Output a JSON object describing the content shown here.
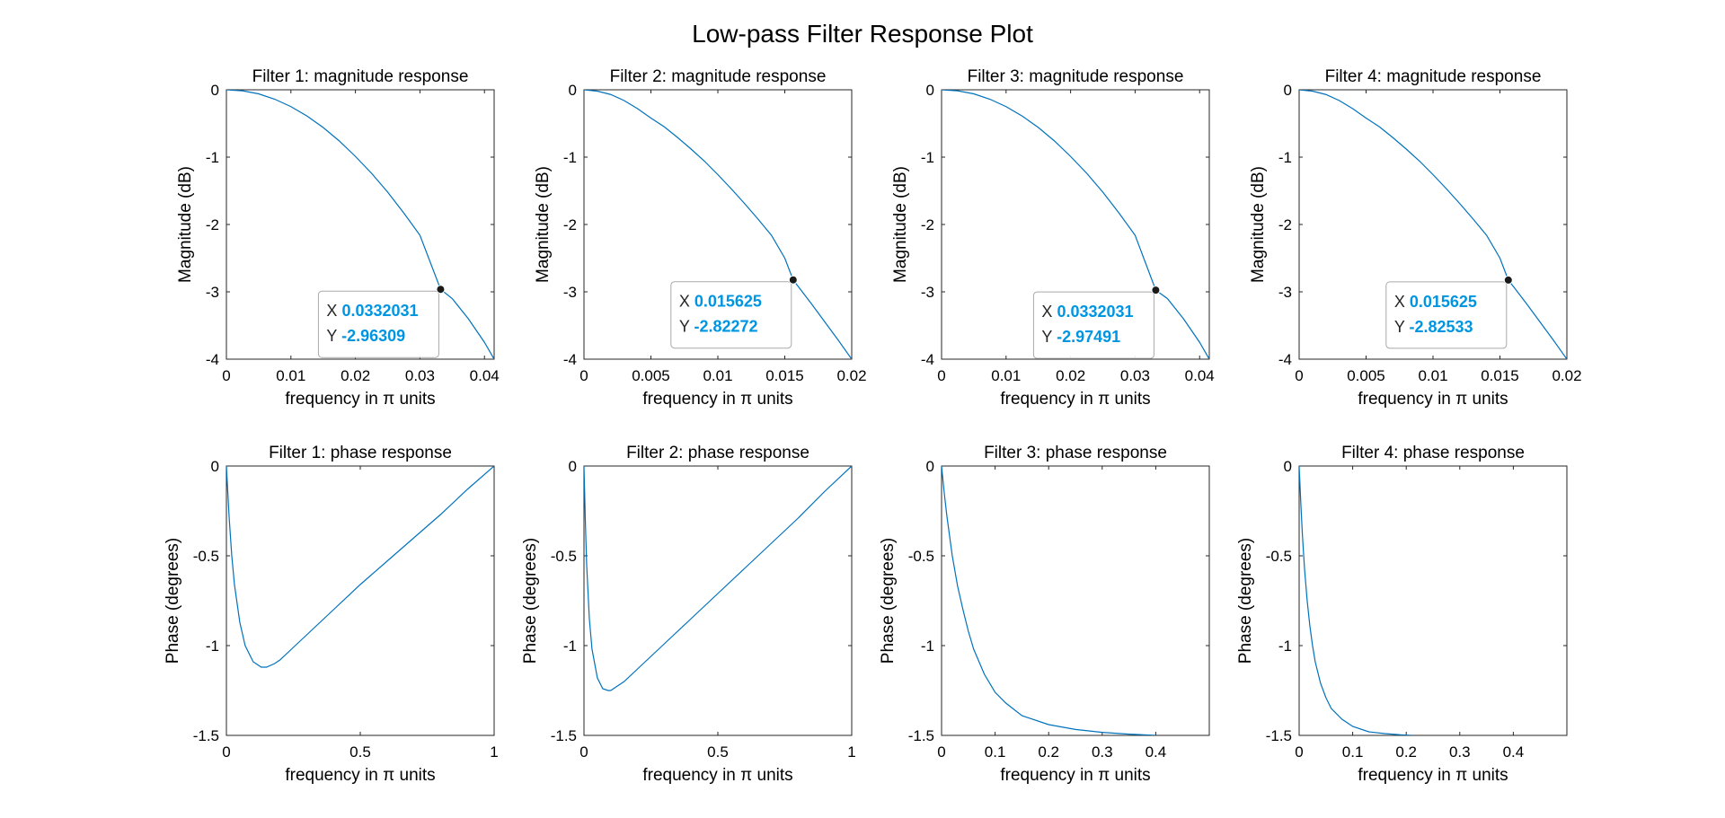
{
  "figure_title": "Low-pass Filter Response Plot",
  "colors": {
    "line": "#0072BD",
    "datatip_value": "#0095E0",
    "axis": "#262626"
  },
  "chart_data": [
    {
      "type": "line",
      "title": "Filter 1: magnitude response",
      "xlabel": "frequency in π units",
      "ylabel": "Magnitude (dB)",
      "xlim": [
        0,
        0.0415
      ],
      "ylim": [
        -4,
        0
      ],
      "xticks": [
        0,
        0.01,
        0.02,
        0.03,
        0.04
      ],
      "xticklabels": [
        "0",
        "0.01",
        "0.02",
        "0.03",
        "0.04"
      ],
      "yticks": [
        -4,
        -3,
        -2,
        -1,
        0
      ],
      "yticklabels": [
        "-4",
        "-3",
        "-2",
        "-1",
        "0"
      ],
      "series": [
        {
          "x": [
            0,
            0.0025,
            0.005,
            0.0075,
            0.01,
            0.0125,
            0.015,
            0.0175,
            0.02,
            0.0225,
            0.025,
            0.0275,
            0.03,
            0.0332031,
            0.035,
            0.0375,
            0.04,
            0.0415
          ],
          "y": [
            0,
            -0.015,
            -0.06,
            -0.14,
            -0.25,
            -0.39,
            -0.56,
            -0.76,
            -0.99,
            -1.24,
            -1.52,
            -1.83,
            -2.16,
            -2.96309,
            -3.1,
            -3.4,
            -3.75,
            -4.0
          ]
        }
      ],
      "datatip": {
        "x": 0.0332031,
        "y": -2.96309,
        "x_label": "X",
        "y_label": "Y",
        "x_text": "0.0332031",
        "y_text": "-2.96309"
      }
    },
    {
      "type": "line",
      "title": "Filter 2: magnitude response",
      "xlabel": "frequency in π units",
      "ylabel": "Magnitude (dB)",
      "xlim": [
        0,
        0.02
      ],
      "ylim": [
        -4,
        0
      ],
      "xticks": [
        0,
        0.005,
        0.01,
        0.015,
        0.02
      ],
      "xticklabels": [
        "0",
        "0.005",
        "0.01",
        "0.015",
        "0.02"
      ],
      "yticks": [
        -4,
        -3,
        -2,
        -1,
        0
      ],
      "yticklabels": [
        "-4",
        "-3",
        "-2",
        "-1",
        "0"
      ],
      "series": [
        {
          "x": [
            0,
            0.001,
            0.002,
            0.003,
            0.004,
            0.005,
            0.006,
            0.007,
            0.008,
            0.009,
            0.01,
            0.011,
            0.012,
            0.013,
            0.014,
            0.015,
            0.015625,
            0.016,
            0.017,
            0.018,
            0.019,
            0.02
          ],
          "y": [
            0,
            -0.02,
            -0.07,
            -0.16,
            -0.28,
            -0.42,
            -0.55,
            -0.71,
            -0.88,
            -1.06,
            -1.26,
            -1.47,
            -1.69,
            -1.92,
            -2.16,
            -2.5,
            -2.82272,
            -2.92,
            -3.18,
            -3.45,
            -3.72,
            -4.0
          ]
        }
      ],
      "datatip": {
        "x": 0.015625,
        "y": -2.82272,
        "x_label": "X",
        "y_label": "Y",
        "x_text": "0.015625",
        "y_text": "-2.82272"
      }
    },
    {
      "type": "line",
      "title": "Filter 3: magnitude response",
      "xlabel": "frequency in π units",
      "ylabel": "Magnitude (dB)",
      "xlim": [
        0,
        0.0415
      ],
      "ylim": [
        -4,
        0
      ],
      "xticks": [
        0,
        0.01,
        0.02,
        0.03,
        0.04
      ],
      "xticklabels": [
        "0",
        "0.01",
        "0.02",
        "0.03",
        "0.04"
      ],
      "yticks": [
        -4,
        -3,
        -2,
        -1,
        0
      ],
      "yticklabels": [
        "-4",
        "-3",
        "-2",
        "-1",
        "0"
      ],
      "series": [
        {
          "x": [
            0,
            0.0025,
            0.005,
            0.0075,
            0.01,
            0.0125,
            0.015,
            0.0175,
            0.02,
            0.0225,
            0.025,
            0.0275,
            0.03,
            0.0332031,
            0.035,
            0.0375,
            0.04,
            0.0415
          ],
          "y": [
            0,
            -0.015,
            -0.06,
            -0.14,
            -0.25,
            -0.39,
            -0.56,
            -0.76,
            -0.99,
            -1.24,
            -1.52,
            -1.83,
            -2.16,
            -2.97491,
            -3.1,
            -3.4,
            -3.75,
            -4.0
          ]
        }
      ],
      "datatip": {
        "x": 0.0332031,
        "y": -2.97491,
        "x_label": "X",
        "y_label": "Y",
        "x_text": "0.0332031",
        "y_text": "-2.97491"
      }
    },
    {
      "type": "line",
      "title": "Filter 4: magnitude response",
      "xlabel": "frequency in π units",
      "ylabel": "Magnitude (dB)",
      "xlim": [
        0,
        0.02
      ],
      "ylim": [
        -4,
        0
      ],
      "xticks": [
        0,
        0.005,
        0.01,
        0.015,
        0.02
      ],
      "xticklabels": [
        "0",
        "0.005",
        "0.01",
        "0.015",
        "0.02"
      ],
      "yticks": [
        -4,
        -3,
        -2,
        -1,
        0
      ],
      "yticklabels": [
        "-4",
        "-3",
        "-2",
        "-1",
        "0"
      ],
      "series": [
        {
          "x": [
            0,
            0.001,
            0.002,
            0.003,
            0.004,
            0.005,
            0.006,
            0.007,
            0.008,
            0.009,
            0.01,
            0.011,
            0.012,
            0.013,
            0.014,
            0.015,
            0.015625,
            0.016,
            0.017,
            0.018,
            0.019,
            0.02
          ],
          "y": [
            0,
            -0.02,
            -0.07,
            -0.16,
            -0.28,
            -0.42,
            -0.55,
            -0.71,
            -0.88,
            -1.06,
            -1.26,
            -1.47,
            -1.69,
            -1.92,
            -2.16,
            -2.5,
            -2.82533,
            -2.92,
            -3.18,
            -3.45,
            -3.72,
            -4.0
          ]
        }
      ],
      "datatip": {
        "x": 0.015625,
        "y": -2.82533,
        "x_label": "X",
        "y_label": "Y",
        "x_text": "0.015625",
        "y_text": "-2.82533"
      }
    },
    {
      "type": "line",
      "title": "Filter 1: phase response",
      "xlabel": "frequency in π units",
      "ylabel": "Phase (degrees)",
      "xlim": [
        0,
        1
      ],
      "ylim": [
        -1.5,
        0
      ],
      "xticks": [
        0,
        0.5,
        1
      ],
      "xticklabels": [
        "0",
        "0.5",
        "1"
      ],
      "yticks": [
        -1.5,
        -1,
        -0.5,
        0
      ],
      "yticklabels": [
        "-1.5",
        "-1",
        "-0.5",
        "0"
      ],
      "series": [
        {
          "x": [
            0,
            0.01,
            0.02,
            0.03,
            0.05,
            0.07,
            0.1,
            0.13,
            0.15,
            0.18,
            0.2,
            0.25,
            0.3,
            0.4,
            0.5,
            0.6,
            0.7,
            0.8,
            0.9,
            1.0
          ],
          "y": [
            0,
            -0.28,
            -0.5,
            -0.66,
            -0.87,
            -1.0,
            -1.09,
            -1.12,
            -1.12,
            -1.1,
            -1.08,
            -1.01,
            -0.94,
            -0.8,
            -0.66,
            -0.53,
            -0.4,
            -0.27,
            -0.13,
            0
          ]
        }
      ]
    },
    {
      "type": "line",
      "title": "Filter 2: phase response",
      "xlabel": "frequency in π units",
      "ylabel": "Phase (degrees)",
      "xlim": [
        0,
        1
      ],
      "ylim": [
        -1.5,
        0
      ],
      "xticks": [
        0,
        0.5,
        1
      ],
      "xticklabels": [
        "0",
        "0.5",
        "1"
      ],
      "yticks": [
        -1.5,
        -1,
        -0.5,
        0
      ],
      "yticklabels": [
        "-1.5",
        "-1",
        "-0.5",
        "0"
      ],
      "series": [
        {
          "x": [
            0,
            0.005,
            0.01,
            0.02,
            0.03,
            0.05,
            0.07,
            0.09,
            0.1,
            0.12,
            0.15,
            0.2,
            0.3,
            0.4,
            0.5,
            0.6,
            0.7,
            0.8,
            0.9,
            1.0
          ],
          "y": [
            0,
            -0.3,
            -0.55,
            -0.85,
            -1.02,
            -1.18,
            -1.24,
            -1.25,
            -1.25,
            -1.23,
            -1.2,
            -1.13,
            -0.99,
            -0.85,
            -0.71,
            -0.57,
            -0.43,
            -0.29,
            -0.14,
            0
          ]
        }
      ]
    },
    {
      "type": "line",
      "title": "Filter 3: phase response",
      "xlabel": "frequency in π units",
      "ylabel": "Phase (degrees)",
      "xlim": [
        0,
        0.5
      ],
      "ylim": [
        -1.5,
        0
      ],
      "xticks": [
        0,
        0.1,
        0.2,
        0.3,
        0.4
      ],
      "xticklabels": [
        "0",
        "0.1",
        "0.2",
        "0.3",
        "0.4"
      ],
      "yticks": [
        -1.5,
        -1,
        -0.5,
        0
      ],
      "yticklabels": [
        "-1.5",
        "-1",
        "-0.5",
        "0"
      ],
      "series": [
        {
          "x": [
            0,
            0.005,
            0.01,
            0.02,
            0.03,
            0.04,
            0.05,
            0.06,
            0.08,
            0.1,
            0.12,
            0.15,
            0.2,
            0.25,
            0.3,
            0.35,
            0.4
          ],
          "y": [
            0,
            -0.15,
            -0.28,
            -0.5,
            -0.67,
            -0.8,
            -0.92,
            -1.02,
            -1.16,
            -1.26,
            -1.32,
            -1.39,
            -1.44,
            -1.467,
            -1.483,
            -1.493,
            -1.5
          ]
        }
      ]
    },
    {
      "type": "line",
      "title": "Filter 4: phase response",
      "xlabel": "frequency in π units",
      "ylabel": "Phase (degrees)",
      "xlim": [
        0,
        0.5
      ],
      "ylim": [
        -1.5,
        0
      ],
      "xticks": [
        0,
        0.1,
        0.2,
        0.3,
        0.4
      ],
      "xticklabels": [
        "0",
        "0.1",
        "0.2",
        "0.3",
        "0.4"
      ],
      "yticks": [
        -1.5,
        -1,
        -0.5,
        0
      ],
      "yticklabels": [
        "-1.5",
        "-1",
        "-0.5",
        "0"
      ],
      "series": [
        {
          "x": [
            0,
            0.003,
            0.006,
            0.01,
            0.015,
            0.02,
            0.025,
            0.03,
            0.04,
            0.05,
            0.06,
            0.08,
            0.1,
            0.13,
            0.16,
            0.19,
            0.21
          ],
          "y": [
            0,
            -0.2,
            -0.38,
            -0.57,
            -0.75,
            -0.89,
            -1.0,
            -1.09,
            -1.21,
            -1.29,
            -1.35,
            -1.41,
            -1.45,
            -1.48,
            -1.49,
            -1.497,
            -1.5
          ]
        }
      ]
    }
  ]
}
